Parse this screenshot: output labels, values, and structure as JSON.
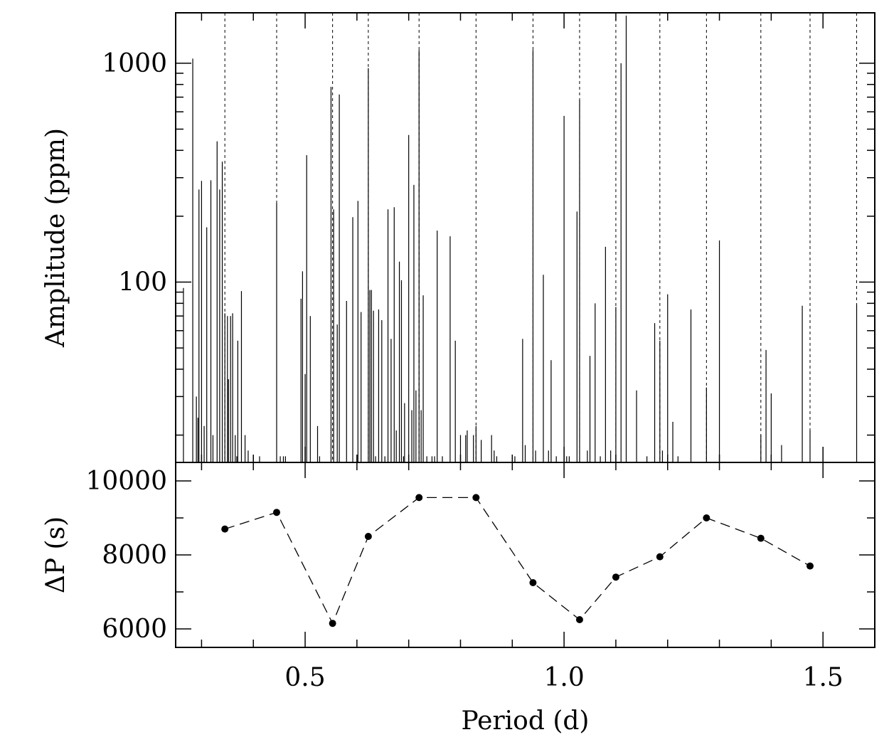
{
  "chart_data": [
    {
      "panel": "top",
      "type": "bar",
      "xlabel": "",
      "ylabel": "Amplitude (ppm)",
      "y_scale": "log",
      "xlim": [
        0.25,
        1.6
      ],
      "ylim": [
        15,
        1700
      ],
      "y_tick_labels": [
        "100",
        "1000"
      ],
      "dashed_marker_periods": [
        0.345,
        0.445,
        0.553,
        0.622,
        0.72,
        0.83,
        0.94,
        1.03,
        1.1,
        1.185,
        1.275,
        1.38,
        1.475,
        1.565
      ],
      "peaks": {
        "period": [
          0.265,
          0.283,
          0.29,
          0.291,
          0.293,
          0.295,
          0.3,
          0.305,
          0.31,
          0.318,
          0.322,
          0.33,
          0.335,
          0.34,
          0.345,
          0.348,
          0.35,
          0.352,
          0.356,
          0.36,
          0.365,
          0.368,
          0.37,
          0.371,
          0.373,
          0.377,
          0.384,
          0.39,
          0.4,
          0.412,
          0.42,
          0.445,
          0.452,
          0.458,
          0.462,
          0.467,
          0.492,
          0.495,
          0.498,
          0.5,
          0.503,
          0.505,
          0.51,
          0.52,
          0.524,
          0.528,
          0.55,
          0.553,
          0.555,
          0.562,
          0.566,
          0.574,
          0.58,
          0.588,
          0.592,
          0.602,
          0.608,
          0.612,
          0.615,
          0.622,
          0.625,
          0.628,
          0.632,
          0.636,
          0.642,
          0.648,
          0.654,
          0.66,
          0.666,
          0.672,
          0.676,
          0.682,
          0.686,
          0.69,
          0.692,
          0.694,
          0.7,
          0.706,
          0.71,
          0.714,
          0.72,
          0.724,
          0.728,
          0.735,
          0.745,
          0.75,
          0.755,
          0.765,
          0.78,
          0.79,
          0.8,
          0.81,
          0.813,
          0.825,
          0.83,
          0.84,
          0.86,
          0.865,
          0.87,
          0.88,
          0.905,
          0.92,
          0.925,
          0.94,
          0.945,
          0.96,
          0.97,
          0.975,
          0.985,
          1.0,
          1.005,
          1.01,
          1.025,
          1.03,
          1.045,
          1.05,
          1.06,
          1.07,
          1.08,
          1.09,
          1.1,
          1.11,
          1.12,
          1.14,
          1.16,
          1.175,
          1.185,
          1.19,
          1.2,
          1.21,
          1.22,
          1.245,
          1.275,
          1.3,
          1.38,
          1.39,
          1.4,
          1.42,
          1.46,
          1.475,
          1.565
        ],
        "amplitude": [
          94,
          1050,
          30,
          15,
          24,
          265,
          290,
          22,
          178,
          292,
          20,
          440,
          265,
          355,
          72,
          15,
          70,
          36,
          70,
          72,
          20,
          16,
          54,
          15,
          15,
          91,
          20,
          17,
          16,
          16,
          15,
          230,
          16,
          16,
          16,
          15,
          84,
          112,
          15,
          38,
          380,
          15,
          70,
          15,
          22,
          16,
          780,
          15,
          215,
          64,
          720,
          15,
          82,
          15,
          198,
          235,
          73,
          15,
          15,
          950,
          92,
          92,
          74,
          16,
          75,
          67,
          16,
          215,
          55,
          220,
          21,
          124,
          102,
          16,
          28,
          15,
          470,
          26,
          278,
          32,
          1150,
          26,
          87,
          16,
          16,
          16,
          172,
          16,
          162,
          54,
          20,
          20,
          21,
          20,
          22,
          19,
          20,
          17,
          16,
          15,
          16,
          55,
          18,
          1150,
          17,
          108,
          17,
          44,
          16,
          575,
          16,
          16,
          210,
          680,
          17,
          46,
          80,
          16,
          145,
          17,
          77,
          1000,
          1650,
          32,
          16,
          65,
          54,
          17,
          88,
          23,
          16,
          75,
          33,
          155,
          20,
          49,
          31,
          18,
          78,
          21,
          79,
          25,
          44,
          19,
          42,
          63,
          58
        ]
      }
    },
    {
      "panel": "bottom",
      "type": "line",
      "xlabel": "Period (d)",
      "ylabel": "ΔP (s)",
      "xlim": [
        0.25,
        1.6
      ],
      "ylim": [
        5500,
        10500
      ],
      "x_tick_labels": [
        "0.5",
        "1.0",
        "1.5"
      ],
      "y_tick_labels": [
        "6000",
        "8000",
        "10000"
      ],
      "line_style": "dashed",
      "marker": "filled-circle",
      "x": [
        0.345,
        0.445,
        0.553,
        0.622,
        0.72,
        0.83,
        0.94,
        1.03,
        1.1,
        1.185,
        1.275,
        1.38,
        1.475
      ],
      "y": [
        8700,
        9150,
        6150,
        8500,
        9550,
        9550,
        7250,
        6250,
        7400,
        7950,
        9000,
        8450,
        7700
      ]
    }
  ]
}
